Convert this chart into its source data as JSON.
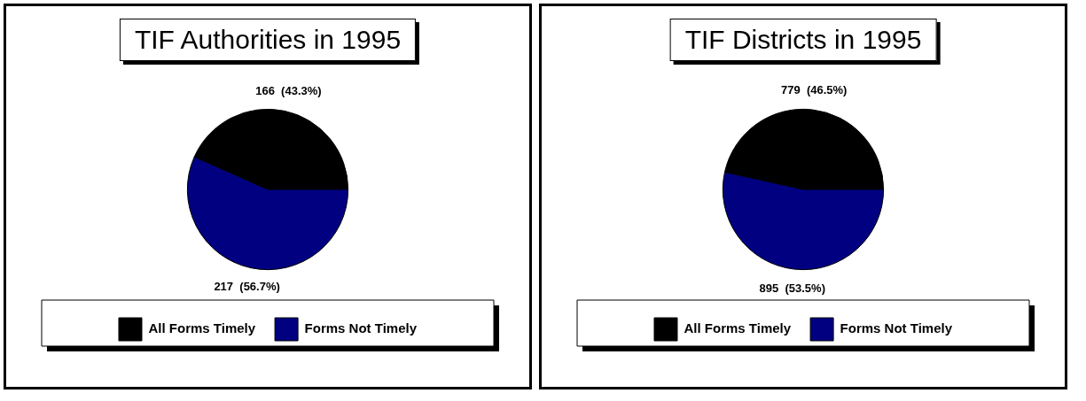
{
  "chart_data": [
    {
      "type": "pie",
      "title": "TIF Authorities in 1995",
      "categories": [
        "All Forms Timely",
        "Forms Not Timely"
      ],
      "values": [
        166,
        217
      ],
      "colors": [
        "#000000",
        "#000080"
      ],
      "value_labels": [
        "166  (43.3%)",
        "217  (56.7%)"
      ],
      "legend": "bottom"
    },
    {
      "type": "pie",
      "title": "TIF Districts in 1995",
      "categories": [
        "All Forms Timely",
        "Forms Not Timely"
      ],
      "values": [
        779,
        895
      ],
      "colors": [
        "#000000",
        "#000080"
      ],
      "value_labels": [
        "779  (46.5%)",
        "895  (53.5%)"
      ],
      "legend": "bottom"
    }
  ]
}
